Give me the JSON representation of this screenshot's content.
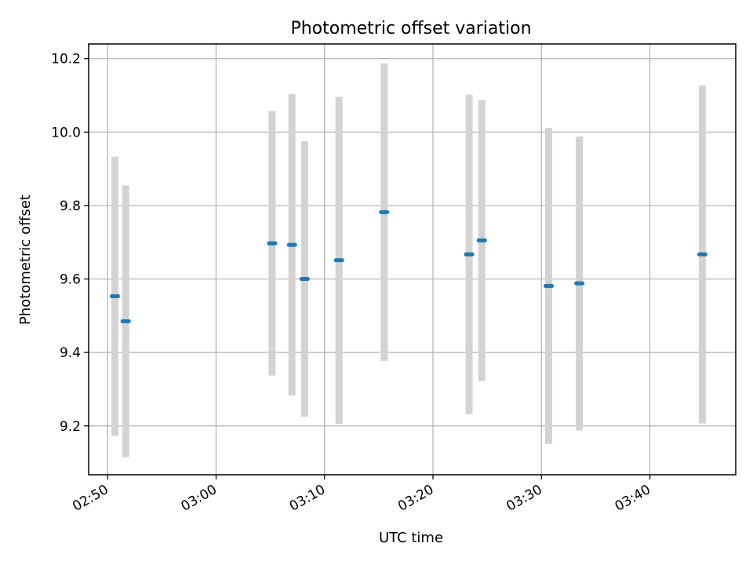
{
  "chart_data": {
    "type": "scatter",
    "title": "Photometric offset variation",
    "xlabel": "UTC time",
    "ylabel": "Photometric offset",
    "x_ticks": [
      "02:50",
      "03:00",
      "03:10",
      "03:20",
      "03:30",
      "03:40"
    ],
    "y_ticks": [
      "9.2",
      "9.4",
      "9.6",
      "9.8",
      "10.0",
      "10.2"
    ],
    "xlim": [
      "02:48:15",
      "03:47:55"
    ],
    "ylim": [
      9.067,
      10.24
    ],
    "grid": true,
    "series": [
      {
        "marker_color": "#1f77b4",
        "errorbar_color": "#d3d3d3",
        "points": [
          {
            "x": "02:50:40",
            "y": 9.553,
            "err": 0.38
          },
          {
            "x": "02:51:40",
            "y": 9.485,
            "err": 0.37
          },
          {
            "x": "03:05:10",
            "y": 9.697,
            "err": 0.36
          },
          {
            "x": "03:07:00",
            "y": 9.693,
            "err": 0.41
          },
          {
            "x": "03:08:10",
            "y": 9.6,
            "err": 0.375
          },
          {
            "x": "03:11:20",
            "y": 9.651,
            "err": 0.445
          },
          {
            "x": "03:15:30",
            "y": 9.782,
            "err": 0.405
          },
          {
            "x": "03:23:20",
            "y": 9.667,
            "err": 0.435
          },
          {
            "x": "03:24:30",
            "y": 9.705,
            "err": 0.383
          },
          {
            "x": "03:30:40",
            "y": 9.581,
            "err": 0.43
          },
          {
            "x": "03:33:30",
            "y": 9.588,
            "err": 0.4
          },
          {
            "x": "03:44:50",
            "y": 9.667,
            "err": 0.46
          }
        ]
      }
    ]
  }
}
